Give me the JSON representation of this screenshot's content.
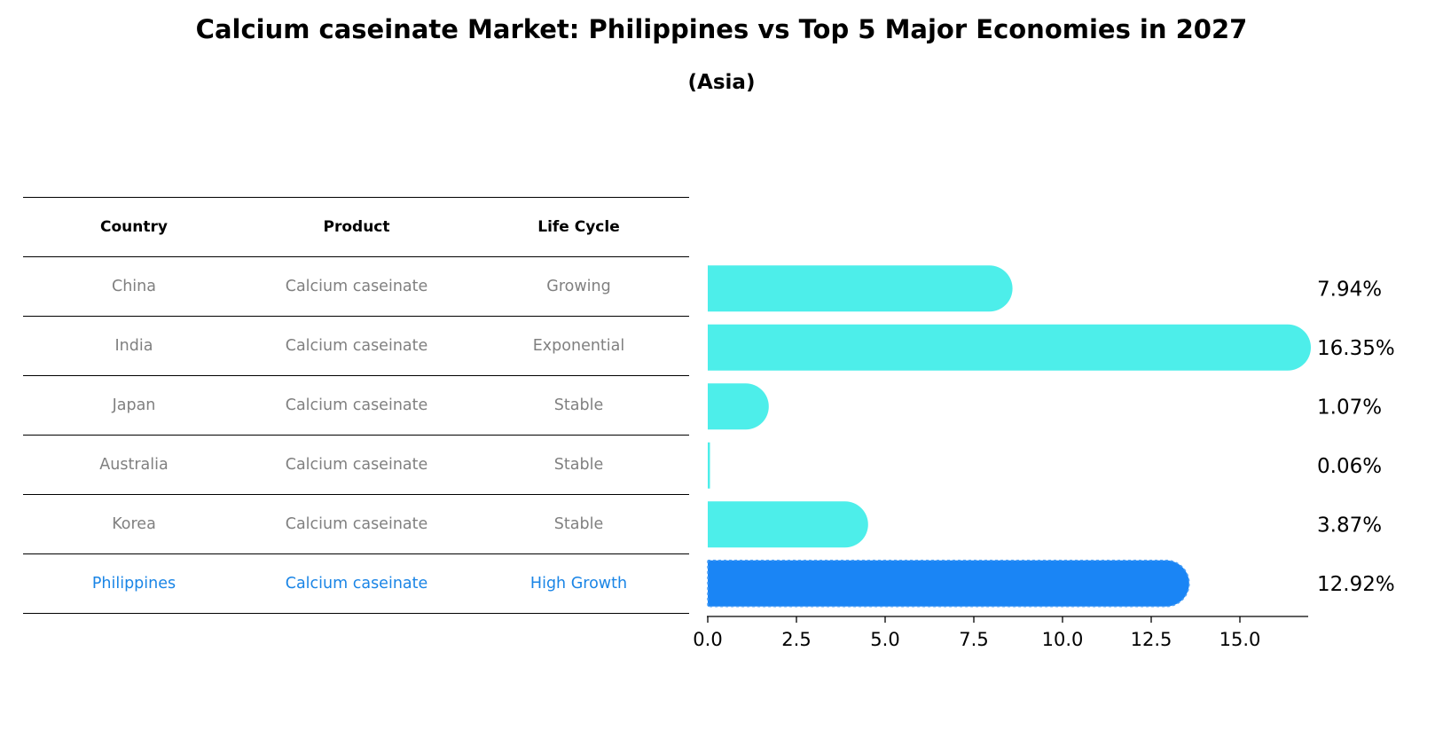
{
  "title": "Calcium caseinate Market: Philippines vs Top 5 Major Economies in 2027",
  "subtitle": "(Asia)",
  "table": {
    "headers": [
      "Country",
      "Product",
      "Life Cycle"
    ],
    "rows": [
      {
        "country": "China",
        "product": "Calcium caseinate",
        "life_cycle": "Growing"
      },
      {
        "country": "India",
        "product": "Calcium caseinate",
        "life_cycle": "Exponential"
      },
      {
        "country": "Japan",
        "product": "Calcium caseinate",
        "life_cycle": "Stable"
      },
      {
        "country": "Australia",
        "product": "Calcium caseinate",
        "life_cycle": "Stable"
      },
      {
        "country": "Korea",
        "product": "Calcium caseinate",
        "life_cycle": "Stable"
      },
      {
        "country": "Philippines",
        "product": "Calcium caseinate",
        "life_cycle": "High Growth"
      }
    ]
  },
  "chart_data": {
    "type": "bar",
    "orientation": "horizontal",
    "categories": [
      "China",
      "India",
      "Japan",
      "Australia",
      "Korea",
      "Philippines"
    ],
    "values": [
      7.94,
      16.35,
      1.07,
      0.06,
      3.87,
      12.92
    ],
    "value_labels": [
      "7.94%",
      "16.35%",
      "1.07%",
      "0.06%",
      "3.87%",
      "12.92%"
    ],
    "highlight": "Philippines",
    "xlim": [
      0,
      17.2
    ],
    "xticks": [
      0,
      2.5,
      5,
      7.5,
      10,
      12.5,
      15
    ],
    "xtick_labels": [
      "0.0",
      "2.5",
      "5.0",
      "7.5",
      "10.0",
      "12.5",
      "15.0"
    ],
    "grid": false,
    "colors": {
      "default": "#4deeea",
      "highlight": "#1a85f5"
    }
  }
}
